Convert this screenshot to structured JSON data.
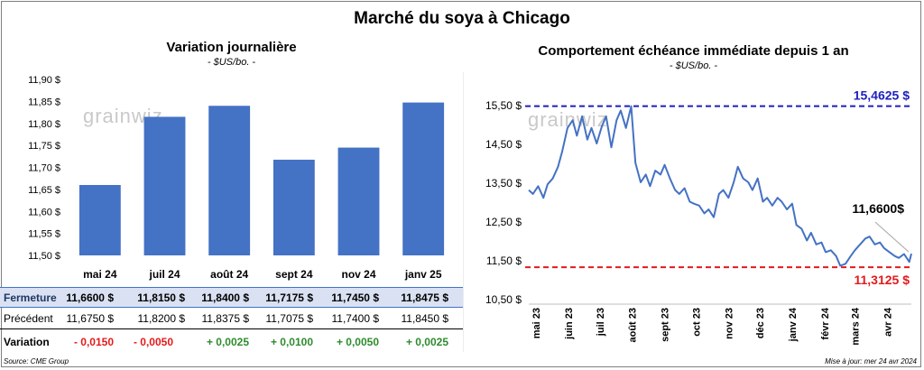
{
  "title": "Marché du soya à Chicago",
  "left_panel": {
    "title": "Variation journalière",
    "unit": "- $US/bo. -",
    "watermark": "grainwiz"
  },
  "right_panel": {
    "title": "Comportement échéance immédiate depuis 1 an",
    "unit": "- $US/bo. -",
    "watermark": "grainwiz",
    "max_label": "15,4625 $",
    "min_label": "11,3125 $",
    "last_label": "11,6600$"
  },
  "table": {
    "rows": [
      {
        "label": "Fermeture",
        "values": [
          "11,6600  $",
          "11,8150  $",
          "11,8400  $",
          "11,7175  $",
          "11,7450  $",
          "11,8475  $"
        ]
      },
      {
        "label": "Précédent",
        "values": [
          "11,6750  $",
          "11,8200  $",
          "11,8375  $",
          "11,7075  $",
          "11,7400  $",
          "11,8450  $"
        ]
      },
      {
        "label": "Variation",
        "values": [
          "- 0,0150",
          "- 0,0050",
          "+ 0,0025",
          "+ 0,0100",
          "+ 0,0050",
          "+ 0,0025"
        ]
      }
    ]
  },
  "footer": {
    "source": "Source: CME Group",
    "updated": "Mise à jour: mer 24 avr 2024"
  },
  "colors": {
    "bar": "#4472c4",
    "line": "#4472c4",
    "max_line": "#1f1fbf",
    "min_line": "#e31a1c",
    "negative": "#e31a1c",
    "positive": "#2e8b2e"
  },
  "chart_data": [
    {
      "type": "bar",
      "title": "Variation journalière",
      "categories": [
        "mai 24",
        "juil 24",
        "août 24",
        "sept 24",
        "nov 24",
        "janv 25"
      ],
      "values": [
        11.66,
        11.815,
        11.84,
        11.7175,
        11.745,
        11.8475
      ],
      "ylim": [
        11.5,
        11.9
      ],
      "yticks": [
        "11,50 $",
        "11,55 $",
        "11,60 $",
        "11,65 $",
        "11,70 $",
        "11,75 $",
        "11,80 $",
        "11,85 $",
        "11,90 $"
      ],
      "grid": false
    },
    {
      "type": "line",
      "title": "Comportement échéance immédiate depuis 1 an",
      "ylim": [
        10.5,
        15.5
      ],
      "yticks": [
        "10,50 $",
        "11,50 $",
        "12,50 $",
        "13,50 $",
        "14,50 $",
        "15,50 $"
      ],
      "xticks": [
        "mai 23",
        "juin 23",
        "juil 23",
        "août 23",
        "sept 23",
        "oct 23",
        "nov 23",
        "déc 23",
        "janv 24",
        "févr 24",
        "mars 24",
        "avr 24"
      ],
      "max": 15.4625,
      "min": 11.3125,
      "last": 11.66,
      "series": [
        {
          "x": [
            "2023-04-24",
            "2023-04-28",
            "2023-05-03",
            "2023-05-08",
            "2023-05-12",
            "2023-05-17",
            "2023-05-22",
            "2023-05-26",
            "2023-05-31",
            "2023-06-05",
            "2023-06-09",
            "2023-06-14",
            "2023-06-19",
            "2023-06-23",
            "2023-06-28",
            "2023-07-03",
            "2023-07-07",
            "2023-07-12",
            "2023-07-17",
            "2023-07-21",
            "2023-07-26",
            "2023-07-31",
            "2023-08-04",
            "2023-08-09",
            "2023-08-14",
            "2023-08-18",
            "2023-08-23",
            "2023-08-28",
            "2023-09-01",
            "2023-09-06",
            "2023-09-11",
            "2023-09-15",
            "2023-09-20",
            "2023-09-25",
            "2023-09-29",
            "2023-10-04",
            "2023-10-09",
            "2023-10-13",
            "2023-10-18",
            "2023-10-23",
            "2023-10-27",
            "2023-11-01",
            "2023-11-06",
            "2023-11-10",
            "2023-11-15",
            "2023-11-20",
            "2023-11-24",
            "2023-11-29",
            "2023-12-04",
            "2023-12-08",
            "2023-12-13",
            "2023-12-18",
            "2023-12-22",
            "2023-12-27",
            "2024-01-01",
            "2024-01-05",
            "2024-01-10",
            "2024-01-15",
            "2024-01-19",
            "2024-01-24",
            "2024-01-29",
            "2024-02-02",
            "2024-02-07",
            "2024-02-12",
            "2024-02-16",
            "2024-02-21",
            "2024-02-26",
            "2024-03-01",
            "2024-03-06",
            "2024-03-11",
            "2024-03-15",
            "2024-03-20",
            "2024-03-25",
            "2024-03-29",
            "2024-04-03",
            "2024-04-08",
            "2024-04-12",
            "2024-04-17",
            "2024-04-22",
            "2024-04-24"
          ],
          "y": [
            13.3,
            13.2,
            13.4,
            13.1,
            13.45,
            13.6,
            13.9,
            14.3,
            14.9,
            15.1,
            14.7,
            15.2,
            14.6,
            14.9,
            14.5,
            14.95,
            15.2,
            14.4,
            15.1,
            15.35,
            14.9,
            15.46,
            14.0,
            13.5,
            13.7,
            13.4,
            13.8,
            13.7,
            13.95,
            13.6,
            13.3,
            13.2,
            13.35,
            13.0,
            12.95,
            12.9,
            12.7,
            12.8,
            12.6,
            13.2,
            13.3,
            13.1,
            13.5,
            13.9,
            13.6,
            13.5,
            13.3,
            13.6,
            13.0,
            13.1,
            12.9,
            13.1,
            13.0,
            12.8,
            12.95,
            12.4,
            12.3,
            12.0,
            12.2,
            11.9,
            11.95,
            11.7,
            11.75,
            11.6,
            11.35,
            11.4,
            11.6,
            11.75,
            11.9,
            12.05,
            12.1,
            11.9,
            11.95,
            11.8,
            11.7,
            11.6,
            11.55,
            11.65,
            11.45,
            11.66
          ]
        }
      ]
    }
  ]
}
